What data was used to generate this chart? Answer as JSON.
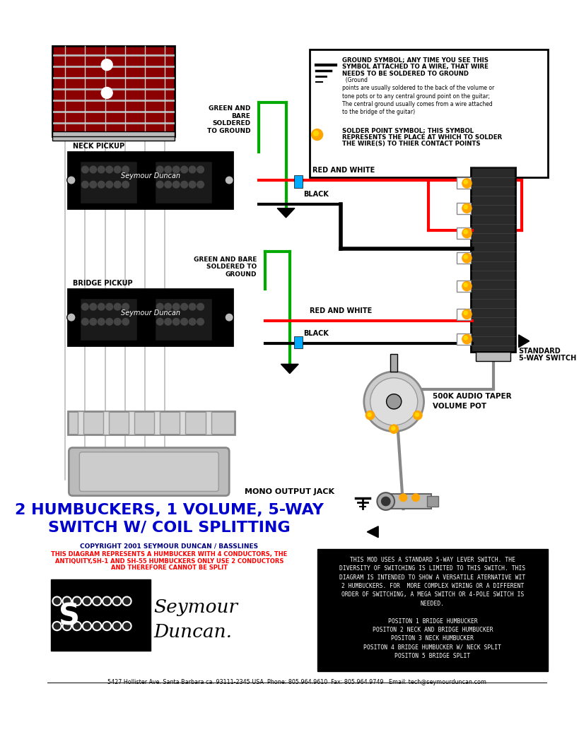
{
  "title_line1": "2 HUMBUCKERS, 1 VOLUME, 5-WAY",
  "title_line2": "SWITCH W/ COIL SPLITTING",
  "title_color": "#0000CC",
  "bg_color": "#FFFFFF",
  "footer_text": "5427 Hollister Ave. Santa Barbara ca. 93111-2345 USA  Phone: 805.964.9610  Fax: 805.964.9749   Email: tech@seymourduncan.com",
  "copyright_text": "COPYRIGHT 2001 SEYMOUR DUNCAN / BASSLINES",
  "warning_line1": "THIS DIAGRAM REPRESENTS A HUMBUCKER WITH 4 CONDUCTORS, THE",
  "warning_line2": "ANTIQUITY,SH-1 AND SH-55 HUMBUCKERS ONLY USE 2 CONDUCTORS",
  "warning_line3": "AND THEREFORE CANNOT BE SPLIT",
  "info_box_line1": "THIS MOD USES A STANDARD 5-WAY LEVER SWITCH. THE",
  "info_box_line2": "DIVERSITY OF SWITCHING IS LIMITED TO THIS SWITCH. THIS",
  "info_box_line3": "DIAGRAM IS INTENDED TO SHOW A VERSATILE ATERNATIVE WIT",
  "info_box_line4": "2 HUMBUCKERS. FOR  MORE COMPLEX WIRING OR A DIFFERENT",
  "info_box_line5": "ORDER OF SWITCHING, A MEGA SWITCH OR 4-POLE SWITCH IS",
  "info_box_line6": "NEEDED.",
  "pos1": "POSITON 1 BRIDGE HUMBUCKER",
  "pos2": "POSITON 2 NECK AND BRIDGE HUMBUCKER",
  "pos3": "POSITON 3 NECK HUMBUCKER",
  "pos4": "POSITON 4 BRIDGE HUMBUCKER W/ NECK SPLIT",
  "pos5": "POSITON 5 BRIDGE SPLIT",
  "ground_title1": "GROUND SYMBOL; ANY TIME YOU SEE THIS",
  "ground_title2": "SYMBOL ATTACHED TO A WIRE, THAT WIRE",
  "ground_title3": "NEEDS TO BE SOLDERED TO GROUND",
  "ground_body": "  (Ground\npoints are usually soldered to the back of the volume or\ntone pots or to any central ground point on the guitar;\nThe central ground usually comes from a wire attached\nto the bridge of the guitar)",
  "solder_title1": "SOLDER POINT SYMBOL; THIS SYMBOL",
  "solder_title2": "REPRESENTS THE PLACE AT WHICH TO SOLDER",
  "solder_title3": "THE WIRE(S) TO THIER CONTACT POINTS",
  "neck_pickup_label": "NECK PICKUP",
  "bridge_pickup_label": "BRIDGE PICKUP",
  "green_bare_top1": "GREEN AND",
  "green_bare_top2": "BARE",
  "green_bare_top3": "SOLDERED",
  "green_bare_top4": "TO GROUND",
  "green_bare_bot1": "GREEN AND BARE",
  "green_bare_bot2": "SOLDERED TO",
  "green_bare_bot3": "GROUND",
  "red_white_top": "RED AND WHITE",
  "red_white_bot": "RED AND WHITE",
  "black_top": "BLACK",
  "black_bot": "BLACK",
  "switch_label1": "STANDARD",
  "switch_label2": "5-WAY SWITCH",
  "vol_label1": "VOLUME POT",
  "vol_label2": "500K AUDIO TAPER",
  "jack_label": "MONO OUTPUT JACK",
  "red": "#FF0000",
  "green": "#00AA00",
  "cyan": "#00AAFF",
  "gray": "#888888",
  "dark_red": "#8B0000",
  "orange": "#FFA500",
  "gold": "#FFD700",
  "white": "#FFFFFF",
  "black": "#000000"
}
